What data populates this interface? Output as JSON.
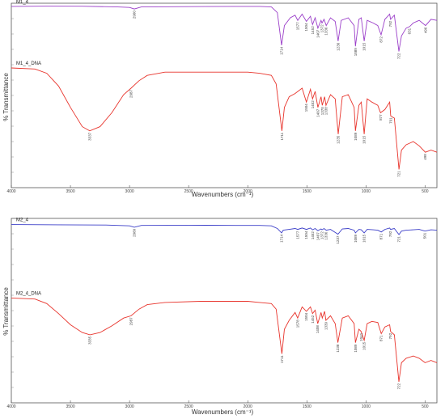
{
  "chart_data": [
    {
      "type": "line",
      "xlabel": "Wavenumbers (cm⁻¹)",
      "ylabel": "% Transmittance",
      "xlim": [
        4000,
        400
      ],
      "x_ticks": [
        "4000",
        "3500",
        "3000",
        "2500",
        "2000",
        "1500",
        "1000",
        "500"
      ],
      "x_tick_values": [
        4000,
        3500,
        3000,
        2500,
        2000,
        1500,
        1000,
        500
      ],
      "grid": false,
      "series": [
        {
          "name": "M1_4",
          "color": "#9b3fc9",
          "points": [
            [
              4000,
              97
            ],
            [
              3700,
              97.5
            ],
            [
              3400,
              97.4
            ],
            [
              3100,
              96
            ],
            [
              3000,
              95
            ],
            [
              2960,
              92
            ],
            [
              2900,
              96
            ],
            [
              2500,
              96.5
            ],
            [
              2100,
              97
            ],
            [
              1900,
              97
            ],
            [
              1800,
              96
            ],
            [
              1750,
              85
            ],
            [
              1714,
              22
            ],
            [
              1690,
              60
            ],
            [
              1640,
              75
            ],
            [
              1600,
              80
            ],
            [
              1577,
              70
            ],
            [
              1540,
              82
            ],
            [
              1504,
              68
            ],
            [
              1470,
              78
            ],
            [
              1452,
              62
            ],
            [
              1430,
              75
            ],
            [
              1407,
              55
            ],
            [
              1380,
              70
            ],
            [
              1372,
              65
            ],
            [
              1355,
              72
            ],
            [
              1336,
              60
            ],
            [
              1300,
              75
            ],
            [
              1260,
              68
            ],
            [
              1236,
              30
            ],
            [
              1210,
              70
            ],
            [
              1150,
              75
            ],
            [
              1100,
              60
            ],
            [
              1089,
              20
            ],
            [
              1060,
              72
            ],
            [
              1040,
              75
            ],
            [
              1015,
              30
            ],
            [
              990,
              70
            ],
            [
              940,
              65
            ],
            [
              900,
              60
            ],
            [
              872,
              42
            ],
            [
              840,
              72
            ],
            [
              800,
              82
            ],
            [
              792,
              72
            ],
            [
              760,
              80
            ],
            [
              722,
              10
            ],
            [
              700,
              40
            ],
            [
              660,
              55
            ],
            [
              631,
              58
            ],
            [
              600,
              65
            ],
            [
              550,
              70
            ],
            [
              496,
              60
            ],
            [
              450,
              72
            ],
            [
              400,
              70
            ]
          ],
          "peak_labels": [
            "2960",
            "1714",
            "1577",
            "1504",
            "1452",
            "1407",
            "1372",
            "1336",
            "1236",
            "1089",
            "1015",
            "872",
            "792",
            "722",
            "631",
            "496"
          ],
          "peak_positions": [
            2960,
            1714,
            1577,
            1504,
            1452,
            1407,
            1372,
            1336,
            1236,
            1089,
            1015,
            872,
            792,
            722,
            631,
            496
          ],
          "peak_label_values": [
            92,
            22,
            70,
            68,
            62,
            55,
            65,
            60,
            30,
            20,
            30,
            42,
            72,
            10,
            58,
            60
          ]
        },
        {
          "name": "M1_4_DNA",
          "color": "#e8342c",
          "points": [
            [
              4000,
              97
            ],
            [
              3800,
              96
            ],
            [
              3700,
              92
            ],
            [
              3600,
              80
            ],
            [
              3500,
              60
            ],
            [
              3400,
              42
            ],
            [
              3337,
              38
            ],
            [
              3250,
              42
            ],
            [
              3150,
              55
            ],
            [
              3050,
              72
            ],
            [
              2987,
              78
            ],
            [
              2920,
              85
            ],
            [
              2850,
              90
            ],
            [
              2700,
              93
            ],
            [
              2400,
              93
            ],
            [
              2000,
              93
            ],
            [
              1900,
              92
            ],
            [
              1800,
              90
            ],
            [
              1760,
              82
            ],
            [
              1711,
              38
            ],
            [
              1690,
              60
            ],
            [
              1650,
              70
            ],
            [
              1600,
              73
            ],
            [
              1540,
              78
            ],
            [
              1504,
              65
            ],
            [
              1470,
              77
            ],
            [
              1452,
              68
            ],
            [
              1430,
              75
            ],
            [
              1407,
              60
            ],
            [
              1380,
              70
            ],
            [
              1370,
              62
            ],
            [
              1350,
              70
            ],
            [
              1338,
              62
            ],
            [
              1300,
              72
            ],
            [
              1260,
              68
            ],
            [
              1235,
              35
            ],
            [
              1200,
              70
            ],
            [
              1150,
              72
            ],
            [
              1100,
              60
            ],
            [
              1089,
              38
            ],
            [
              1060,
              62
            ],
            [
              1040,
              65
            ],
            [
              1015,
              35
            ],
            [
              990,
              68
            ],
            [
              950,
              65
            ],
            [
              900,
              62
            ],
            [
              877,
              55
            ],
            [
              840,
              58
            ],
            [
              800,
              65
            ],
            [
              791,
              52
            ],
            [
              760,
              50
            ],
            [
              721,
              2
            ],
            [
              700,
              20
            ],
            [
              660,
              25
            ],
            [
              600,
              28
            ],
            [
              550,
              24
            ],
            [
              498,
              18
            ],
            [
              450,
              20
            ],
            [
              400,
              18
            ]
          ],
          "peak_labels": [
            "3337",
            "2987",
            "1711",
            "1504",
            "1452",
            "1407",
            "1370",
            "1338",
            "1235",
            "1089",
            "1015",
            "877",
            "791",
            "721",
            "498"
          ],
          "peak_positions": [
            3337,
            2987,
            1711,
            1504,
            1452,
            1407,
            1370,
            1338,
            1235,
            1089,
            1015,
            877,
            791,
            721,
            498
          ],
          "peak_label_values": [
            38,
            78,
            38,
            65,
            68,
            60,
            62,
            62,
            35,
            38,
            35,
            55,
            52,
            2,
            18
          ]
        }
      ]
    },
    {
      "type": "line",
      "xlabel": "Wavenumbers (cm⁻¹)",
      "ylabel": "% Transmittance",
      "xlim": [
        4000,
        400
      ],
      "x_ticks": [
        "4000",
        "3500",
        "3000",
        "2500",
        "2000",
        "1500",
        "1000",
        "500"
      ],
      "x_tick_values": [
        4000,
        3500,
        3000,
        2500,
        2000,
        1500,
        1000,
        500
      ],
      "grid": false,
      "series": [
        {
          "name": "M2_4",
          "color": "#3b3ec8",
          "points": [
            [
              4000,
              97
            ],
            [
              3600,
              96.5
            ],
            [
              3200,
              96
            ],
            [
              3000,
              94
            ],
            [
              2960,
              91
            ],
            [
              2900,
              95
            ],
            [
              2500,
              95.5
            ],
            [
              2100,
              95
            ],
            [
              1900,
              95
            ],
            [
              1800,
              94
            ],
            [
              1750,
              88
            ],
            [
              1714,
              78
            ],
            [
              1700,
              84
            ],
            [
              1650,
              86
            ],
            [
              1600,
              88
            ],
            [
              1577,
              86
            ],
            [
              1540,
              89
            ],
            [
              1504,
              86
            ],
            [
              1470,
              89
            ],
            [
              1452,
              85
            ],
            [
              1430,
              88
            ],
            [
              1407,
              83
            ],
            [
              1380,
              87
            ],
            [
              1372,
              85
            ],
            [
              1355,
              88
            ],
            [
              1336,
              84
            ],
            [
              1300,
              86
            ],
            [
              1237,
              75
            ],
            [
              1200,
              87
            ],
            [
              1150,
              88
            ],
            [
              1100,
              84
            ],
            [
              1089,
              78
            ],
            [
              1060,
              86
            ],
            [
              1040,
              85
            ],
            [
              1015,
              78
            ],
            [
              990,
              86
            ],
            [
              940,
              85
            ],
            [
              900,
              84
            ],
            [
              871,
              80
            ],
            [
              840,
              86
            ],
            [
              800,
              89
            ],
            [
              792,
              86
            ],
            [
              760,
              88
            ],
            [
              721,
              74
            ],
            [
              700,
              82
            ],
            [
              660,
              84
            ],
            [
              600,
              85
            ],
            [
              550,
              86
            ],
            [
              501,
              82
            ],
            [
              450,
              85
            ],
            [
              400,
              84
            ]
          ],
          "peak_labels": [
            "2960",
            "1714",
            "1577",
            "1504",
            "1452",
            "1407",
            "1372",
            "1336",
            "1237",
            "1089",
            "1015",
            "871",
            "792",
            "721",
            "501"
          ],
          "peak_positions": [
            2960,
            1714,
            1577,
            1504,
            1452,
            1407,
            1372,
            1336,
            1237,
            1089,
            1015,
            871,
            792,
            721,
            501
          ],
          "peak_label_values": [
            91,
            78,
            86,
            86,
            85,
            83,
            85,
            84,
            75,
            78,
            78,
            80,
            86,
            74,
            82
          ]
        },
        {
          "name": "M2_4_DNA",
          "color": "#e8342c",
          "points": [
            [
              4000,
              78
            ],
            [
              3800,
              77
            ],
            [
              3700,
              73
            ],
            [
              3600,
              64
            ],
            [
              3500,
              54
            ],
            [
              3400,
              47
            ],
            [
              3335,
              45
            ],
            [
              3250,
              47
            ],
            [
              3150,
              53
            ],
            [
              3050,
              60
            ],
            [
              2987,
              62
            ],
            [
              2920,
              68
            ],
            [
              2850,
              72
            ],
            [
              2700,
              74
            ],
            [
              2400,
              75
            ],
            [
              2000,
              75
            ],
            [
              1900,
              74
            ],
            [
              1800,
              73
            ],
            [
              1760,
              68
            ],
            [
              1711,
              28
            ],
            [
              1690,
              50
            ],
            [
              1650,
              58
            ],
            [
              1600,
              65
            ],
            [
              1578,
              60
            ],
            [
              1540,
              70
            ],
            [
              1504,
              66
            ],
            [
              1470,
              70
            ],
            [
              1452,
              64
            ],
            [
              1430,
              67
            ],
            [
              1408,
              55
            ],
            [
              1380,
              65
            ],
            [
              1370,
              60
            ],
            [
              1350,
              66
            ],
            [
              1339,
              58
            ],
            [
              1300,
              62
            ],
            [
              1260,
              55
            ],
            [
              1238,
              38
            ],
            [
              1200,
              60
            ],
            [
              1150,
              62
            ],
            [
              1100,
              55
            ],
            [
              1089,
              38
            ],
            [
              1060,
              50
            ],
            [
              1041,
              48
            ],
            [
              1015,
              40
            ],
            [
              990,
              55
            ],
            [
              950,
              57
            ],
            [
              900,
              56
            ],
            [
              871,
              46
            ],
            [
              840,
              52
            ],
            [
              800,
              54
            ],
            [
              792,
              48
            ],
            [
              760,
              45
            ],
            [
              722,
              3
            ],
            [
              700,
              20
            ],
            [
              660,
              24
            ],
            [
              600,
              26
            ],
            [
              550,
              24
            ],
            [
              500,
              20
            ],
            [
              450,
              22
            ],
            [
              400,
              20
            ]
          ],
          "peak_labels": [
            "3335",
            "2987",
            "1711",
            "1578",
            "1504",
            "1452",
            "1408",
            "1339",
            "1238",
            "1089",
            "1041",
            "1015",
            "871",
            "792",
            "722"
          ],
          "peak_positions": [
            3335,
            2987,
            1711,
            1578,
            1504,
            1452,
            1408,
            1339,
            1238,
            1089,
            1041,
            1015,
            871,
            792,
            722
          ],
          "peak_label_values": [
            45,
            62,
            28,
            60,
            66,
            64,
            55,
            58,
            38,
            38,
            48,
            40,
            46,
            48,
            3
          ]
        }
      ]
    }
  ]
}
